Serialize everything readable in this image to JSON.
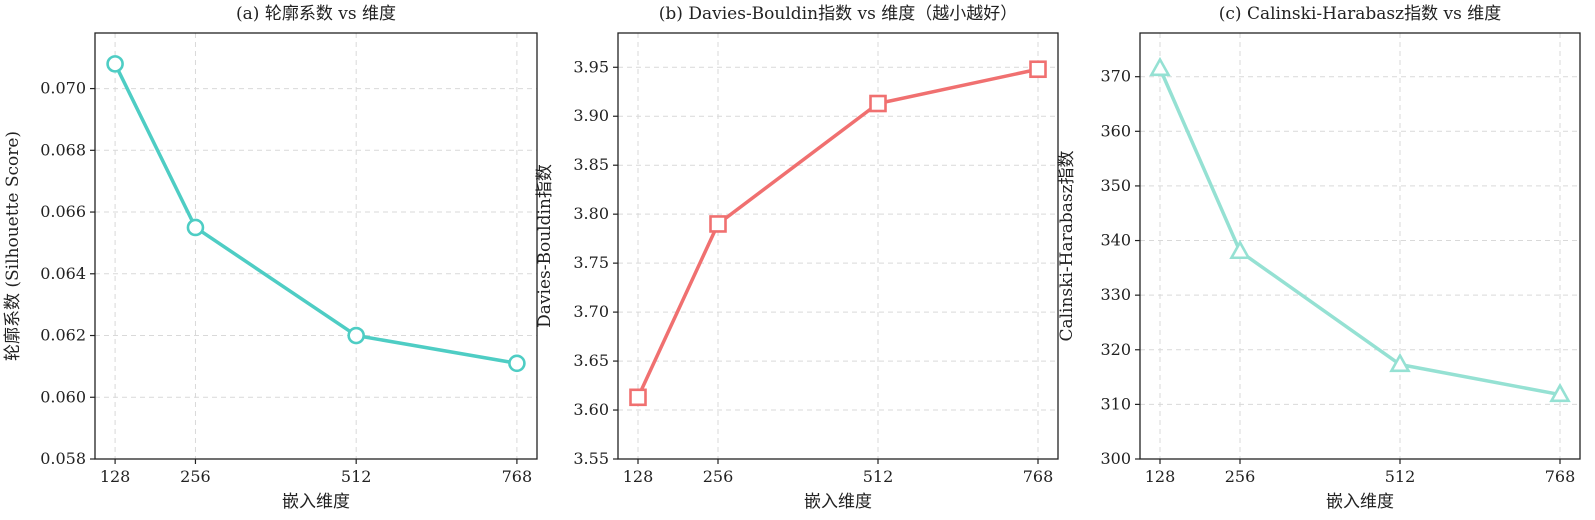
{
  "chart_data": [
    {
      "type": "line",
      "title": "(a) 轮廓系数 vs 维度",
      "xlabel": "嵌入维度",
      "ylabel": "轮廓系数 (Silhouette Score)",
      "x": [
        128,
        256,
        512,
        768
      ],
      "x_tick_labels": [
        "128",
        "256",
        "512",
        "768"
      ],
      "xlim": [
        96,
        800
      ],
      "ylim": [
        0.058,
        0.0718
      ],
      "y_ticks": [
        0.058,
        0.06,
        0.062,
        0.064,
        0.066,
        0.068,
        0.07
      ],
      "y_tick_labels": [
        "0.058",
        "0.060",
        "0.062",
        "0.064",
        "0.066",
        "0.068",
        "0.070"
      ],
      "grid": true,
      "series": [
        {
          "values": [
            0.0708,
            0.0655,
            0.062,
            0.0611
          ],
          "color": "#4ECDC4",
          "marker": "circle"
        }
      ]
    },
    {
      "type": "line",
      "title": "(b) Davies-Bouldin指数 vs 维度（越小越好）",
      "xlabel": "嵌入维度",
      "ylabel": "Davies-Bouldin指数",
      "x": [
        128,
        256,
        512,
        768
      ],
      "x_tick_labels": [
        "128",
        "256",
        "512",
        "768"
      ],
      "xlim": [
        96,
        800
      ],
      "ylim": [
        3.55,
        3.985
      ],
      "y_ticks": [
        3.55,
        3.6,
        3.65,
        3.7,
        3.75,
        3.8,
        3.85,
        3.9,
        3.95
      ],
      "y_tick_labels": [
        "3.55",
        "3.60",
        "3.65",
        "3.70",
        "3.75",
        "3.80",
        "3.85",
        "3.90",
        "3.95"
      ],
      "grid": true,
      "series": [
        {
          "values": [
            3.613,
            3.79,
            3.913,
            3.948
          ],
          "color": "#F07070",
          "marker": "square"
        }
      ]
    },
    {
      "type": "line",
      "title": "(c) Calinski-Harabasz指数 vs 维度",
      "xlabel": "嵌入维度",
      "ylabel": "Calinski-Harabasz指数",
      "x": [
        128,
        256,
        512,
        768
      ],
      "x_tick_labels": [
        "128",
        "256",
        "512",
        "768"
      ],
      "xlim": [
        96,
        800
      ],
      "ylim": [
        300,
        378
      ],
      "y_ticks": [
        300,
        310,
        320,
        330,
        340,
        350,
        360,
        370
      ],
      "y_tick_labels": [
        "300",
        "310",
        "320",
        "330",
        "340",
        "350",
        "360",
        "370"
      ],
      "grid": true,
      "series": [
        {
          "values": [
            371.5,
            338.0,
            317.3,
            311.8
          ],
          "color": "#95E1D3",
          "marker": "triangle"
        }
      ]
    }
  ]
}
